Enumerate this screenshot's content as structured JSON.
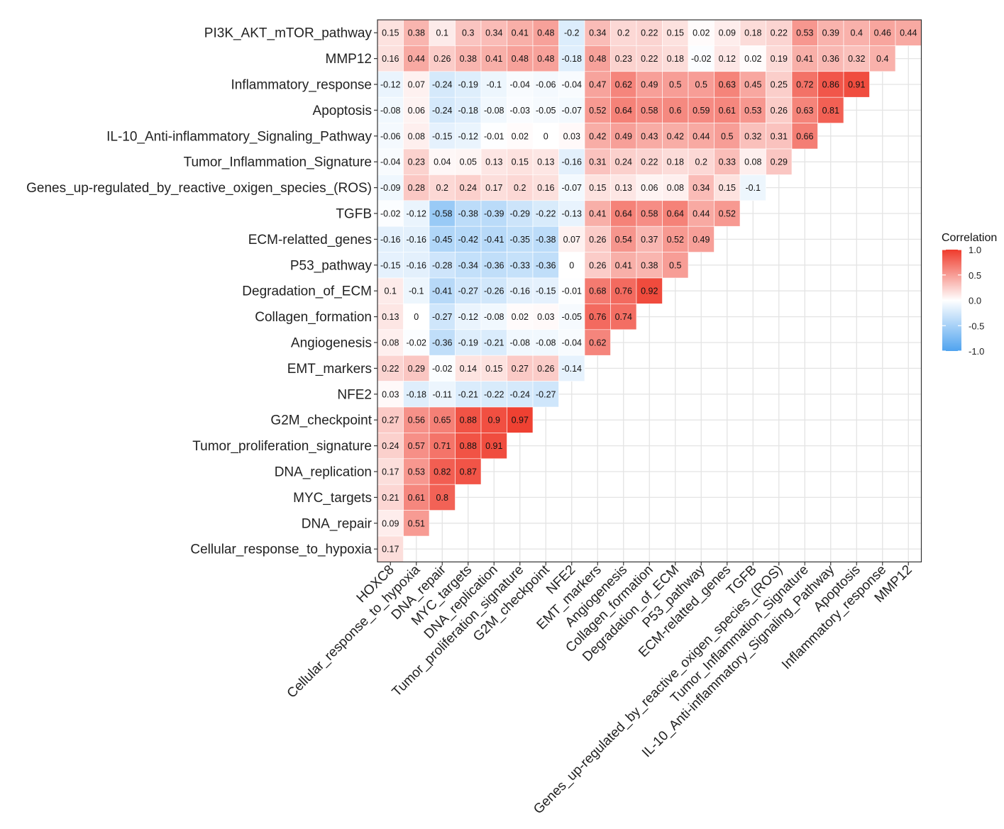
{
  "chart_data": {
    "type": "heatmap",
    "title": "",
    "legend_title": "Correlation",
    "legend_ticks": [
      "1.0",
      "0.5",
      "0.0",
      "-0.5",
      "-1.0"
    ],
    "scale": {
      "min": -1.0,
      "max": 1.0,
      "low_color": "#4fa3ef",
      "mid_color": "#ffffff",
      "high_color": "#ef3b2c"
    },
    "rows": [
      "PI3K_AKT_mTOR_pathway",
      "MMP12",
      "Inflammatory_response",
      "Apoptosis",
      "IL-10_Anti-inflammatory_Signaling_Pathway",
      "Tumor_Inflammation_Signature",
      "Genes_up-regulated_by_reactive_oxigen_species_(ROS)",
      "TGFB",
      "ECM-relatted_genes",
      "P53_pathway",
      "Degradation_of_ECM",
      "Collagen_formation",
      "Angiogenesis",
      "EMT_markers",
      "NFE2",
      "G2M_checkpoint",
      "Tumor_proliferation_signature",
      "DNA_replication",
      "MYC_targets",
      "DNA_repair",
      "Cellular_response_to_hypoxia"
    ],
    "columns": [
      "HOXC8",
      "Cellular_response_to_hypoxia",
      "DNA_repair",
      "MYC_targets",
      "DNA_replication",
      "Tumor_proliferation_signature",
      "G2M_checkpoint",
      "NFE2",
      "EMT_markers",
      "Angiogenesis",
      "Collagen_formation",
      "Degradation_of_ECM",
      "P53_pathway",
      "ECM-relatted_genes",
      "TGFB",
      "Genes_up-regulated_by_reactive_oxigen_species_(ROS)",
      "Tumor_Inflammation_Signature",
      "IL-10_Anti-inflammatory_Signaling_Pathway",
      "Apoptosis",
      "Inflammatory_response",
      "MMP12"
    ],
    "values": [
      [
        "0.15",
        "0.38",
        "0.1",
        "0.3",
        "0.34",
        "0.41",
        "0.48",
        "-0.2",
        "0.34",
        "0.2",
        "0.22",
        "0.15",
        "0.02",
        "0.09",
        "0.18",
        "0.22",
        "0.53",
        "0.39",
        "0.4",
        "0.46",
        "0.44"
      ],
      [
        "0.16",
        "0.44",
        "0.26",
        "0.38",
        "0.41",
        "0.48",
        "0.48",
        "-0.18",
        "0.48",
        "0.23",
        "0.22",
        "0.18",
        "-0.02",
        "0.12",
        "0.02",
        "0.19",
        "0.41",
        "0.36",
        "0.32",
        "0.4"
      ],
      [
        "-0.12",
        "0.07",
        "-0.24",
        "-0.19",
        "-0.1",
        "-0.04",
        "-0.06",
        "-0.04",
        "0.47",
        "0.62",
        "0.49",
        "0.5",
        "0.5",
        "0.63",
        "0.45",
        "0.25",
        "0.72",
        "0.86",
        "0.91"
      ],
      [
        "-0.08",
        "0.06",
        "-0.24",
        "-0.18",
        "-0.08",
        "-0.03",
        "-0.05",
        "-0.07",
        "0.52",
        "0.64",
        "0.58",
        "0.6",
        "0.59",
        "0.61",
        "0.53",
        "0.26",
        "0.63",
        "0.81"
      ],
      [
        "-0.06",
        "0.08",
        "-0.15",
        "-0.12",
        "-0.01",
        "0.02",
        "0",
        "0.03",
        "0.42",
        "0.49",
        "0.43",
        "0.42",
        "0.44",
        "0.5",
        "0.32",
        "0.31",
        "0.66"
      ],
      [
        "-0.04",
        "0.23",
        "0.04",
        "0.05",
        "0.13",
        "0.15",
        "0.13",
        "-0.16",
        "0.31",
        "0.24",
        "0.22",
        "0.18",
        "0.2",
        "0.33",
        "0.08",
        "0.29"
      ],
      [
        "-0.09",
        "0.28",
        "0.2",
        "0.24",
        "0.17",
        "0.2",
        "0.16",
        "-0.07",
        "0.15",
        "0.13",
        "0.06",
        "0.08",
        "0.34",
        "0.15",
        "-0.1"
      ],
      [
        "-0.02",
        "-0.12",
        "-0.58",
        "-0.38",
        "-0.39",
        "-0.29",
        "-0.22",
        "-0.13",
        "0.41",
        "0.64",
        "0.58",
        "0.64",
        "0.44",
        "0.52"
      ],
      [
        "-0.16",
        "-0.16",
        "-0.45",
        "-0.42",
        "-0.41",
        "-0.35",
        "-0.38",
        "0.07",
        "0.26",
        "0.54",
        "0.37",
        "0.52",
        "0.49"
      ],
      [
        "-0.15",
        "-0.16",
        "-0.28",
        "-0.34",
        "-0.36",
        "-0.33",
        "-0.36",
        "0",
        "0.26",
        "0.41",
        "0.38",
        "0.5"
      ],
      [
        "0.1",
        "-0.1",
        "-0.41",
        "-0.27",
        "-0.26",
        "-0.16",
        "-0.15",
        "-0.01",
        "0.68",
        "0.76",
        "0.92"
      ],
      [
        "0.13",
        "0",
        "-0.27",
        "-0.12",
        "-0.08",
        "0.02",
        "0.03",
        "-0.05",
        "0.76",
        "0.74"
      ],
      [
        "0.08",
        "-0.02",
        "-0.36",
        "-0.19",
        "-0.21",
        "-0.08",
        "-0.08",
        "-0.04",
        "0.62"
      ],
      [
        "0.22",
        "0.29",
        "-0.02",
        "0.14",
        "0.15",
        "0.27",
        "0.26",
        "-0.14"
      ],
      [
        "0.03",
        "-0.18",
        "-0.11",
        "-0.21",
        "-0.22",
        "-0.24",
        "-0.27"
      ],
      [
        "0.27",
        "0.56",
        "0.65",
        "0.88",
        "0.9",
        "0.97"
      ],
      [
        "0.24",
        "0.57",
        "0.71",
        "0.88",
        "0.91"
      ],
      [
        "0.17",
        "0.53",
        "0.82",
        "0.87"
      ],
      [
        "0.21",
        "0.61",
        "0.8"
      ],
      [
        "0.09",
        "0.51"
      ],
      [
        "0.17"
      ]
    ]
  }
}
